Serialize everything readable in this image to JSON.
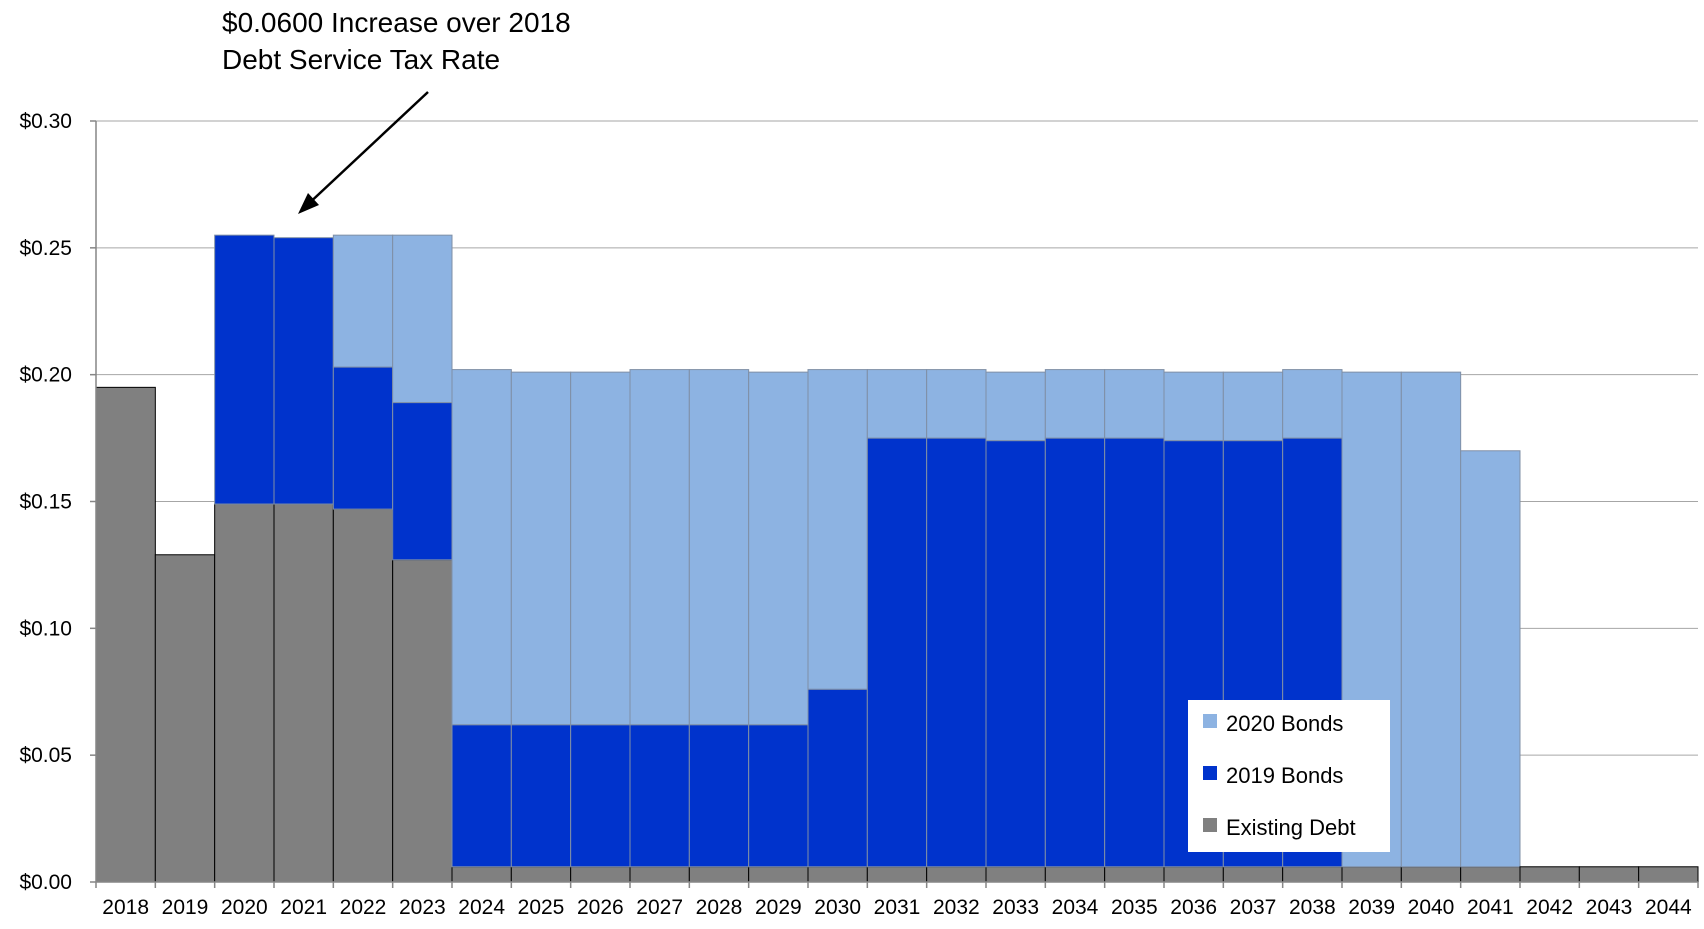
{
  "chart_data": {
    "type": "bar",
    "stacked": true,
    "annotation": [
      "$0.0600 Increase over 2018",
      "Debt Service Tax Rate"
    ],
    "categories": [
      "2018",
      "2019",
      "2020",
      "2021",
      "2022",
      "2023",
      "2024",
      "2025",
      "2026",
      "2027",
      "2028",
      "2029",
      "2030",
      "2031",
      "2032",
      "2033",
      "2034",
      "2035",
      "2036",
      "2037",
      "2038",
      "2039",
      "2040",
      "2041",
      "2042",
      "2043",
      "2044"
    ],
    "series": [
      {
        "name": "Existing Debt",
        "color": "#808080",
        "values": [
          0.195,
          0.129,
          0.149,
          0.149,
          0.147,
          0.127,
          0.006,
          0.006,
          0.006,
          0.006,
          0.006,
          0.006,
          0.006,
          0.006,
          0.006,
          0.006,
          0.006,
          0.006,
          0.006,
          0.006,
          0.006,
          0.006,
          0.006,
          0.006,
          0.006,
          0.006,
          0.006
        ]
      },
      {
        "name": "2019 Bonds",
        "color": "#0033CC",
        "values": [
          0,
          0,
          0.106,
          0.105,
          0.056,
          0.062,
          0.056,
          0.056,
          0.056,
          0.056,
          0.056,
          0.056,
          0.07,
          0.169,
          0.169,
          0.168,
          0.169,
          0.169,
          0.168,
          0.168,
          0.169,
          0,
          0,
          0,
          0,
          0,
          0
        ]
      },
      {
        "name": "2020 Bonds",
        "color": "#8DB3E2",
        "values": [
          0,
          0,
          0,
          0,
          0.052,
          0.066,
          0.14,
          0.139,
          0.139,
          0.14,
          0.14,
          0.139,
          0.126,
          0.027,
          0.027,
          0.027,
          0.027,
          0.027,
          0.027,
          0.027,
          0.027,
          0.195,
          0.195,
          0.164,
          0,
          0,
          0
        ]
      }
    ],
    "y_ticks": [
      "$0.00",
      "$0.05",
      "$0.10",
      "$0.15",
      "$0.20",
      "$0.25",
      "$0.30"
    ],
    "ylim": [
      0,
      0.3
    ],
    "grid": true,
    "legend": {
      "placement": "lower-right",
      "order": [
        "2020 Bonds",
        "2019 Bonds",
        "Existing Debt"
      ]
    }
  }
}
